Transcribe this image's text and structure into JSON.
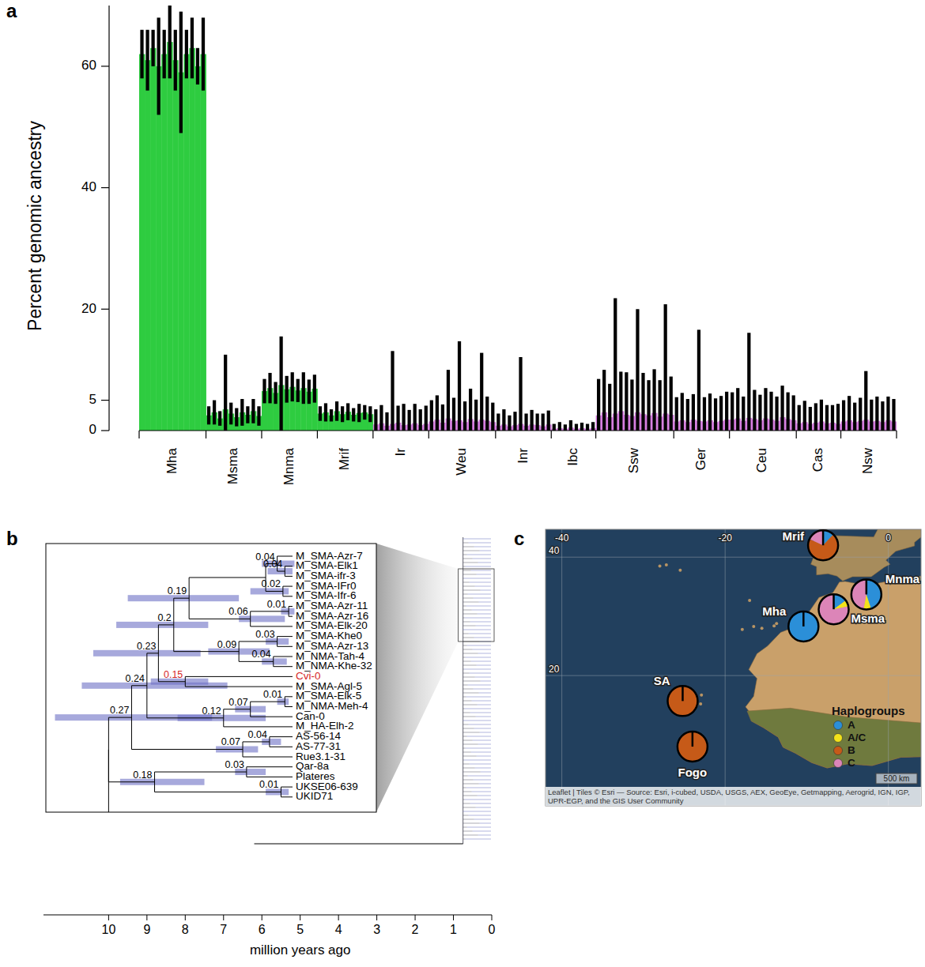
{
  "chart_data": [
    {
      "panel": "a",
      "type": "bar",
      "ylabel": "Percent genomic ancestry",
      "ylim": [
        0,
        70
      ],
      "yticks": [
        0,
        5,
        20,
        40,
        60
      ],
      "series": [
        {
          "name": "Mha",
          "color": "#2ecc40",
          "values": [
            62,
            61,
            63,
            60,
            62,
            64,
            61,
            59,
            62,
            63,
            60,
            62
          ],
          "errors": [
            4,
            5,
            3,
            8,
            4,
            6,
            5,
            10,
            4,
            5,
            3,
            6
          ]
        },
        {
          "name": "Msma",
          "color": "#2ecc40",
          "values": [
            2.5,
            3,
            2,
            3.5,
            2.8,
            2.2,
            3,
            2.6,
            3.2,
            2.4
          ],
          "errors": [
            1.5,
            2,
            1.2,
            9,
            1.8,
            1.5,
            2.2,
            1.4,
            2,
            1.6
          ]
        },
        {
          "name": "Mnma",
          "color": "#2ecc40",
          "values": [
            6.5,
            7,
            6.2,
            7.5,
            6.8,
            7.2,
            6.6,
            7,
            6.4,
            6.9
          ],
          "errors": [
            2,
            2.5,
            1.8,
            8,
            2.2,
            2.4,
            1.9,
            2.6,
            2,
            2.3
          ]
        },
        {
          "name": "Mrif",
          "color": "#2ecc40",
          "values": [
            2.8,
            3,
            2.5,
            3.2,
            2.7,
            3.1,
            2.6,
            2.9,
            3,
            2.7
          ],
          "errors": [
            1.2,
            1.5,
            1,
            1.6,
            1.3,
            1.4,
            1.1,
            1.5,
            1.2,
            1.3
          ]
        },
        {
          "name": "Ir",
          "color": "#d67ee0",
          "values": [
            1,
            1.2,
            0.8,
            1.1,
            1.3,
            0.9,
            1,
            1.2,
            0.9,
            1.1
          ],
          "errors": [
            2.5,
            3,
            2.2,
            12,
            2.8,
            3.5,
            2.4,
            3.2,
            2.6,
            3
          ]
        },
        {
          "name": "Weu",
          "color": "#d67ee0",
          "values": [
            1.5,
            1.8,
            1.3,
            2,
            1.6,
            1.7,
            1.4,
            1.9,
            1.5,
            1.8,
            1.6,
            1.4
          ],
          "errors": [
            3.5,
            4,
            3,
            8,
            3.8,
            13,
            3.4,
            5,
            3.6,
            11,
            4,
            3.2
          ]
        },
        {
          "name": "Inr",
          "color": "#d67ee0",
          "values": [
            0.8,
            1,
            0.7,
            0.9,
            1.1,
            0.8,
            1,
            0.9,
            0.7,
            1
          ],
          "errors": [
            2,
            2.5,
            1.8,
            2.2,
            11,
            2,
            2.4,
            1.9,
            2.1,
            2.3
          ]
        },
        {
          "name": "Ibc",
          "color": "#d67ee0",
          "values": [
            0.3,
            0.4,
            0.3,
            0.5,
            0.3,
            0.4,
            0.3,
            0.4
          ],
          "errors": [
            0.8,
            1,
            0.7,
            1.2,
            0.8,
            0.9,
            0.8,
            1
          ]
        },
        {
          "name": "Ssw",
          "color": "#d67ee0",
          "values": [
            2.5,
            3,
            2.2,
            2.8,
            3.2,
            2.6,
            2.4,
            3,
            2.7,
            2.5,
            2.9,
            2.3,
            2.8,
            2.6
          ],
          "errors": [
            6,
            7,
            5.5,
            19,
            6.5,
            7,
            6,
            17,
            6.8,
            5.8,
            7.2,
            6,
            18,
            6.3
          ]
        },
        {
          "name": "Ger",
          "color": "#d67ee0",
          "values": [
            1.5,
            1.7,
            1.4,
            1.8,
            1.6,
            1.5,
            1.7,
            1.4,
            1.6,
            1.8
          ],
          "errors": [
            4,
            4.5,
            3.8,
            4.2,
            15,
            4,
            4.4,
            3.9,
            4.1,
            4.6
          ]
        },
        {
          "name": "Ceu",
          "color": "#d67ee0",
          "values": [
            1.8,
            2,
            1.6,
            2.1,
            1.9,
            1.7,
            2,
            1.8,
            1.6,
            2.2,
            1.9,
            1.7
          ],
          "errors": [
            4.5,
            5,
            4,
            14,
            4.8,
            4.2,
            5,
            4.6,
            4,
            5.2,
            4.4,
            4.1
          ]
        },
        {
          "name": "Cas",
          "color": "#d67ee0",
          "values": [
            1.2,
            1.4,
            1.1,
            1.3,
            1.5,
            1.2,
            1.3,
            1.1
          ],
          "errors": [
            3,
            3.5,
            2.8,
            3.2,
            3.6,
            3,
            2.9,
            3.3
          ]
        },
        {
          "name": "Nsw",
          "color": "#d67ee0",
          "values": [
            1.5,
            1.7,
            1.4,
            1.6,
            1.8,
            1.5,
            1.6,
            1.4,
            1.7,
            1.5
          ],
          "errors": [
            3.5,
            4,
            3.2,
            3.8,
            8,
            3.6,
            4,
            3.4,
            3.9,
            3.7
          ]
        }
      ]
    },
    {
      "panel": "b",
      "type": "tree",
      "xlabel": "million years ago",
      "xlim": [
        11.7,
        0
      ],
      "xticks": [
        10,
        9,
        8,
        7,
        6,
        5,
        4,
        3,
        2,
        1,
        0
      ],
      "tip_age": 5.2,
      "overview": {
        "root_age": 6.2,
        "crown_age": 0.75
      },
      "tree": {
        "age": 10.0,
        "children": [
          {
            "support": 0.27,
            "age": 9.4,
            "ci": [
              7.3,
              11.4
            ],
            "children": [
              {
                "support": 0.24,
                "age": 9.0,
                "ci": [
                  6.9,
                  10.7
                ],
                "children": [
                  {
                    "support": 0.23,
                    "age": 8.7,
                    "ci": [
                      7.6,
                      10.4
                    ],
                    "children": [
                      {
                        "support": 0.2,
                        "age": 8.3,
                        "ci": [
                          7.4,
                          9.8
                        ],
                        "children": [
                          {
                            "support": 0.19,
                            "age": 7.9,
                            "ci": [
                              6.6,
                              9.5
                            ],
                            "children": [
                              {
                                "age": 5.9,
                                "children": [
                                  {
                                    "support": 0.04,
                                    "age": 5.6,
                                    "ci": [
                                      5.15,
                                      6.0
                                    ],
                                    "children": [
                                      {
                                        "name": "M_SMA-Azr-7"
                                      },
                                      {
                                        "support": 0.04,
                                        "age": 5.4,
                                        "ci": [
                                          5.2,
                                          5.85
                                        ],
                                        "children": [
                                          {
                                            "name": "M_SMA-Elk1"
                                          },
                                          {
                                            "name": "M_SMA-ifr-3"
                                          }
                                        ]
                                      }
                                    ]
                                  },
                                  {
                                    "support": 0.02,
                                    "age": 5.45,
                                    "ci": [
                                      5.3,
                                      6.3
                                    ],
                                    "children": [
                                      {
                                        "name": "M_SMA-IFr0"
                                      },
                                      {
                                        "name": "M_SMA-Ifr-6"
                                      }
                                    ]
                                  }
                                ]
                              },
                              {
                                "support": 0.06,
                                "age": 6.3,
                                "ci": [
                                  5.4,
                                  6.6
                                ],
                                "children": [
                                  {
                                    "support": 0.01,
                                    "age": 5.3,
                                    "ci": [
                                      5.15,
                                      5.5
                                    ],
                                    "children": [
                                      {
                                        "name": "M_SMA-Azr-11"
                                      },
                                      {
                                        "name": "M_SMA-Azr-16"
                                      }
                                    ]
                                  },
                                  {
                                    "name": "M_SMA-Elk-20"
                                  }
                                ]
                              }
                            ]
                          },
                          {
                            "support": 0.09,
                            "age": 6.6,
                            "ci": [
                              5.8,
                              7.4
                            ],
                            "children": [
                              {
                                "support": 0.03,
                                "age": 5.6,
                                "ci": [
                                  5.3,
                                  5.9
                                ],
                                "children": [
                                  {
                                    "name": "M_SMA-Khe0"
                                  },
                                  {
                                    "name": "M_SMA-Azr-13"
                                  }
                                ]
                              },
                              {
                                "support": 0.04,
                                "age": 5.7,
                                "ci": [
                                  5.35,
                                  6.0
                                ],
                                "children": [
                                  {
                                    "name": "M_NMA-Tah-4"
                                  },
                                  {
                                    "name": "M_NMA-Khe-32"
                                  }
                                ]
                              }
                            ]
                          }
                        ]
                      },
                      {
                        "support": 0.15,
                        "age": 8.0,
                        "ci": [
                          7.4,
                          8.9
                        ],
                        "color": "#d62728",
                        "children": [
                          {
                            "name": "Cvi-0",
                            "color": "#d62728"
                          },
                          {
                            "name": "M_SMA-Agl-5"
                          }
                        ]
                      }
                    ]
                  },
                  {
                    "support": 0.12,
                    "age": 7.0,
                    "ci": [
                      5.9,
                      8.2
                    ],
                    "children": [
                      {
                        "support": 0.07,
                        "age": 6.3,
                        "ci": [
                          5.9,
                          6.7
                        ],
                        "children": [
                          {
                            "support": 0.01,
                            "age": 5.4,
                            "ci": [
                              5.3,
                              5.6
                            ],
                            "children": [
                              {
                                "name": "M_SMA-Elk-5"
                              },
                              {
                                "name": "M_NMA-Meh-4"
                              }
                            ]
                          },
                          {
                            "name": "Can-0"
                          }
                        ]
                      },
                      {
                        "name": "M_HA-Elh-2"
                      }
                    ]
                  }
                ]
              },
              {
                "support": 0.07,
                "age": 6.5,
                "ci": [
                  6.1,
                  7.2
                ],
                "children": [
                  {
                    "support": 0.04,
                    "age": 5.8,
                    "ci": [
                      5.5,
                      6.0
                    ],
                    "children": [
                      {
                        "name": "AS-56-14"
                      },
                      {
                        "name": "AS-77-31"
                      }
                    ]
                  },
                  {
                    "name": "Rue3.1-31"
                  }
                ]
              }
            ]
          },
          {
            "support": 0.18,
            "age": 8.8,
            "ci": [
              7.5,
              9.7
            ],
            "children": [
              {
                "support": 0.03,
                "age": 6.4,
                "ci": [
                  5.9,
                  6.7
                ],
                "children": [
                  {
                    "name": "Qar-8a"
                  },
                  {
                    "name": "Plateres"
                  }
                ]
              },
              {
                "support": 0.01,
                "age": 5.5,
                "ci": [
                  5.3,
                  5.9
                ],
                "children": [
                  {
                    "name": "UKSE06-639"
                  },
                  {
                    "name": "UKID71"
                  }
                ]
              }
            ]
          }
        ]
      }
    },
    {
      "panel": "c",
      "type": "map",
      "xlim": [
        -42,
        4
      ],
      "ylim": [
        -2,
        44.7
      ],
      "xticks": [
        -40,
        -20,
        0
      ],
      "yticks": [
        20,
        40
      ],
      "grid": true,
      "legend_title": "Haplogroups",
      "legend": "bottom-right",
      "categories": [
        "A",
        "A/C",
        "B",
        "C"
      ],
      "colors": [
        "#2b8fd8",
        "#f2e21a",
        "#c65a18",
        "#dc85b8"
      ],
      "sites": [
        {
          "name": "Mrif",
          "lon": -8.0,
          "lat": 42.0,
          "values": [
            12,
            0,
            70,
            18
          ]
        },
        {
          "name": "Mnma",
          "lon": -2.7,
          "lat": 33.7,
          "values": [
            45,
            8,
            0,
            47
          ]
        },
        {
          "name": "Mha",
          "lon": -10.4,
          "lat": 28.3,
          "values": [
            100,
            0,
            0,
            0
          ]
        },
        {
          "name": "Msma",
          "lon": -6.7,
          "lat": 31.2,
          "values": [
            15,
            7,
            0,
            78
          ]
        },
        {
          "name": "SA",
          "lon": -25.2,
          "lat": 15.7,
          "values": [
            0,
            0,
            100,
            0
          ]
        },
        {
          "name": "Fogo",
          "lon": -24.0,
          "lat": 8.0,
          "values": [
            0,
            0,
            100,
            0
          ]
        }
      ],
      "scale_bar": "500 km",
      "attribution": "Leaflet | Tiles © Esri — Source: Esri, i-cubed, USDA, USGS, AEX, GeoEye, Getmapping, Aerogrid, IGN, IGP, UPR-EGP, and the GIS User Community"
    }
  ]
}
